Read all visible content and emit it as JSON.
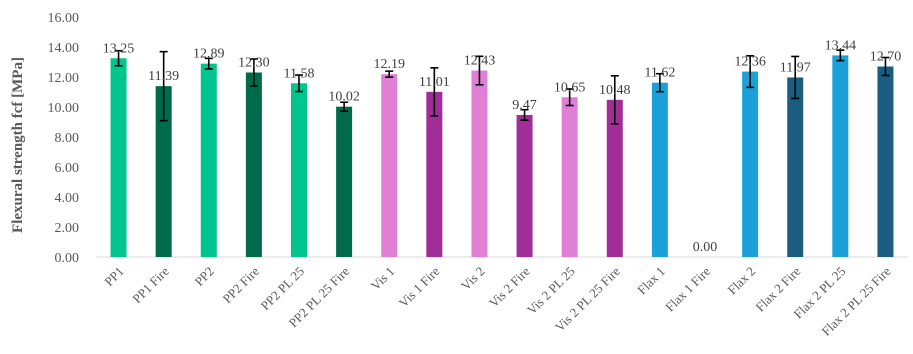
{
  "chart_data": {
    "type": "bar",
    "title": "",
    "xlabel": "",
    "ylabel": "Flexural strength fcf [MPa]",
    "ylim": [
      0,
      16
    ],
    "yticks": [
      "0.00",
      "2.00",
      "4.00",
      "6.00",
      "8.00",
      "10.00",
      "12.00",
      "14.00",
      "16.00"
    ],
    "grid": false,
    "legend": "none",
    "categories": [
      "PP1",
      "PP1 Fire",
      "PP2",
      "PP2 Fire",
      "PP2 PL 25",
      "PP2 PL 25 Fire",
      "Vis 1",
      "Vis 1 Fire",
      "Vis 2",
      "Vis 2 Fire",
      "Vis 2 PL 25",
      "Vis 2 PL 25 Fire",
      "Flax 1",
      "Flax 1 Fire",
      "Flax 2",
      "Flax 2 Fire",
      "Flax 2 PL 25",
      "Flax 2 PL 25 Fire"
    ],
    "values": [
      13.25,
      11.39,
      12.89,
      12.3,
      11.58,
      10.02,
      12.19,
      11.01,
      12.43,
      9.47,
      10.65,
      10.48,
      11.62,
      0.0,
      12.36,
      11.97,
      13.44,
      12.7
    ],
    "labels": [
      "13.25",
      "11.39",
      "12.89",
      "12.30",
      "11.58",
      "10.02",
      "12.19",
      "11.01",
      "12.43",
      "9.47",
      "10.65",
      "10.48",
      "11.62",
      "0.00",
      "12.36",
      "11.97",
      "13.44",
      "12.70"
    ],
    "errors": [
      0.5,
      2.3,
      0.35,
      0.9,
      0.55,
      0.3,
      0.2,
      1.6,
      0.95,
      0.35,
      0.55,
      1.6,
      0.6,
      0,
      1.05,
      1.4,
      0.35,
      0.6
    ],
    "colors": [
      "#00c58e",
      "#006b4a",
      "#00c58e",
      "#006b4a",
      "#00c58e",
      "#006b4a",
      "#e07fd6",
      "#a02d98",
      "#e07fd6",
      "#a02d98",
      "#e07fd6",
      "#a02d98",
      "#1ba0da",
      "#1a5d7f",
      "#1ba0da",
      "#1a5d7f",
      "#1ba0da",
      "#1a5d7f"
    ]
  }
}
